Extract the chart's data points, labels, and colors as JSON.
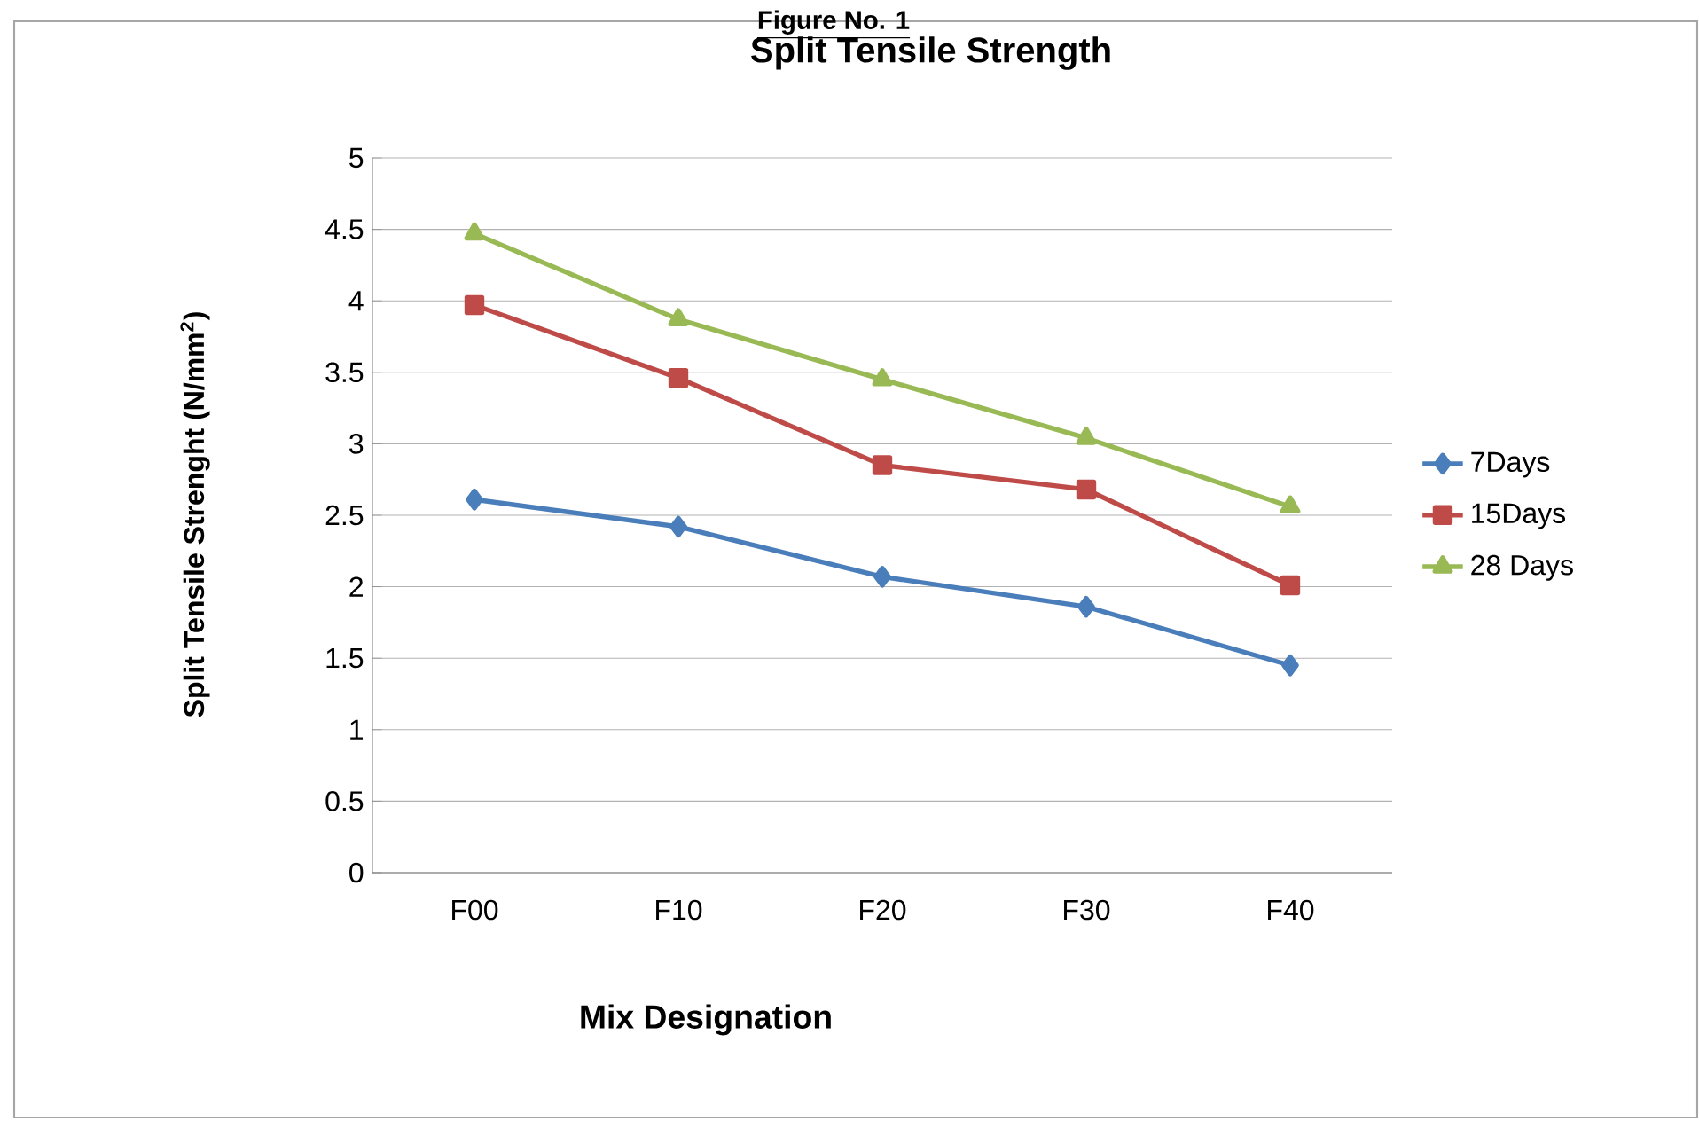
{
  "chart_data": {
    "type": "line",
    "title": "Split Tensile Strength",
    "xlabel": "Mix Designation",
    "ylabel": "Split Tensile Strenght (N/mm$^{2}$)",
    "annotations": [
      "Figure No. 1"
    ],
    "categories": [
      "F00",
      "F10",
      "F20",
      "F30",
      "F40"
    ],
    "series": [
      {
        "name": "7Days",
        "color": "#4a7ebb",
        "marker": "diamond",
        "values": [
          2.61,
          2.42,
          2.07,
          1.86,
          1.45
        ]
      },
      {
        "name": "15Days",
        "color": "#be4b48",
        "marker": "square",
        "values": [
          3.97,
          3.46,
          2.85,
          2.68,
          2.01
        ]
      },
      {
        "name": "28 Days",
        "color": "#98b954",
        "marker": "triangle",
        "values": [
          4.47,
          3.87,
          3.45,
          3.04,
          2.56
        ]
      }
    ],
    "ylim": [
      0,
      5
    ],
    "yticks": [
      0,
      0.5,
      1,
      1.5,
      2,
      2.5,
      3,
      3.5,
      4,
      4.5,
      5
    ],
    "grid": "y",
    "legend": "right"
  }
}
